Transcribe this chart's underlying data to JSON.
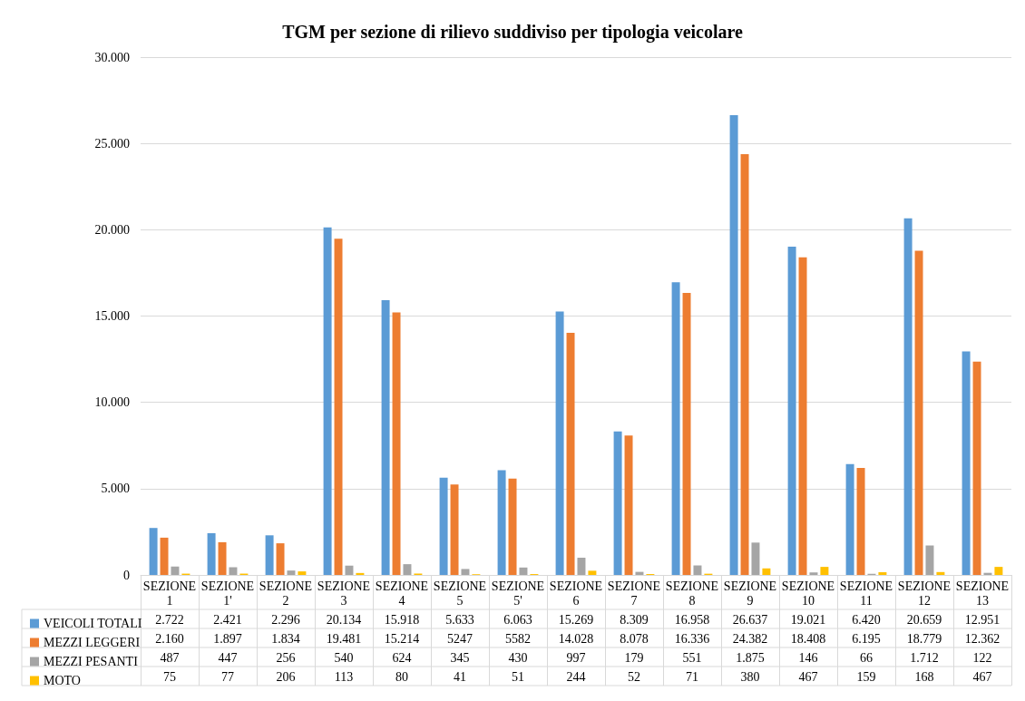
{
  "chart_data": {
    "type": "bar",
    "title": "TGM per sezione di rilievo suddiviso per tipologia veicolare",
    "categories": [
      "SEZIONE 1",
      "SEZIONE 1'",
      "SEZIONE 2",
      "SEZIONE 3",
      "SEZIONE 4",
      "SEZIONE 5",
      "SEZIONE 5'",
      "SEZIONE 6",
      "SEZIONE 7",
      "SEZIONE 8",
      "SEZIONE 9",
      "SEZIONE 10",
      "SEZIONE 11",
      "SEZIONE 12",
      "SEZIONE 13"
    ],
    "series": [
      {
        "name": "VEICOLI TOTALI",
        "color": "#5b9bd5",
        "values": [
          2722,
          2421,
          2296,
          20134,
          15918,
          5633,
          6063,
          15269,
          8309,
          16958,
          26637,
          19021,
          6420,
          20659,
          12951
        ],
        "value_labels": [
          "2.722",
          "2.421",
          "2.296",
          "20.134",
          "15.918",
          "5.633",
          "6.063",
          "15.269",
          "8.309",
          "16.958",
          "26.637",
          "19.021",
          "6.420",
          "20.659",
          "12.951"
        ]
      },
      {
        "name": "MEZZI LEGGERI",
        "color": "#ed7d31",
        "values": [
          2160,
          1897,
          1834,
          19481,
          15214,
          5247,
          5582,
          14028,
          8078,
          16336,
          24382,
          18408,
          6195,
          18779,
          12362
        ],
        "value_labels": [
          "2.160",
          "1.897",
          "1.834",
          "19.481",
          "15.214",
          "5247",
          "5582",
          "14.028",
          "8.078",
          "16.336",
          "24.382",
          "18.408",
          "6.195",
          "18.779",
          "12.362"
        ]
      },
      {
        "name": "MEZZI PESANTI",
        "color": "#a5a5a5",
        "values": [
          487,
          447,
          256,
          540,
          624,
          345,
          430,
          997,
          179,
          551,
          1875,
          146,
          66,
          1712,
          122
        ],
        "value_labels": [
          "487",
          "447",
          "256",
          "540",
          "624",
          "345",
          "430",
          "997",
          "179",
          "551",
          "1.875",
          "146",
          "66",
          "1.712",
          "122"
        ]
      },
      {
        "name": "MOTO",
        "color": "#ffc000",
        "values": [
          75,
          77,
          206,
          113,
          80,
          41,
          51,
          244,
          52,
          71,
          380,
          467,
          159,
          168,
          467
        ],
        "value_labels": [
          "75",
          "77",
          "206",
          "113",
          "80",
          "41",
          "51",
          "244",
          "52",
          "71",
          "380",
          "467",
          "159",
          "168",
          "467"
        ]
      }
    ],
    "ylim": [
      0,
      30000
    ],
    "yticks": [
      0,
      {
        "value": 5000,
        "label": "5.000"
      },
      {
        "value": 10000,
        "label": "10.000"
      },
      {
        "value": 15000,
        "label": "15.000"
      },
      {
        "value": 20000,
        "label": "20.000"
      },
      {
        "value": 25000,
        "label": "25.000"
      },
      {
        "value": 30000,
        "label": "30.000"
      }
    ],
    "grid": "y",
    "legend": "bottom left"
  }
}
